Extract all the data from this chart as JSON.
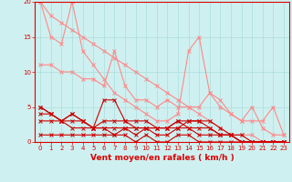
{
  "background_color": "#cff0f0",
  "grid_color": "#aadddd",
  "xlabel": "Vent moyen/en rafales ( km/h )",
  "xlabel_color": "#dd0000",
  "ylabel_ticks": [
    0,
    5,
    10,
    15,
    20
  ],
  "xticks": [
    0,
    1,
    2,
    3,
    4,
    5,
    6,
    7,
    8,
    9,
    10,
    11,
    12,
    13,
    14,
    15,
    16,
    17,
    18,
    19,
    20,
    21,
    22,
    23
  ],
  "xlim": [
    -0.5,
    23.5
  ],
  "ylim": [
    0,
    20
  ],
  "series": [
    {
      "x": [
        0,
        1,
        2,
        3,
        4,
        5,
        6,
        7,
        8,
        9,
        10,
        11,
        12,
        13,
        14,
        15,
        16,
        17,
        18,
        19,
        20,
        21,
        22,
        23
      ],
      "y": [
        20,
        18,
        17,
        16,
        15,
        14,
        13,
        12,
        11,
        10,
        9,
        8,
        7,
        6,
        5,
        4,
        3,
        2,
        1,
        1,
        1,
        0,
        0,
        0
      ],
      "color": "#ff8888",
      "lw": 0.8,
      "marker": "x",
      "ms": 2.5
    },
    {
      "x": [
        0,
        1,
        2,
        3,
        4,
        5,
        6,
        7,
        8,
        9,
        10,
        11,
        12,
        13,
        14,
        15,
        16,
        17,
        18,
        19,
        20,
        21,
        22,
        23
      ],
      "y": [
        20,
        15,
        14,
        20,
        13,
        11,
        9,
        7,
        6,
        5,
        4,
        3,
        3,
        4,
        13,
        15,
        7,
        5,
        4,
        3,
        5,
        2,
        1,
        1
      ],
      "color": "#ff8888",
      "lw": 0.8,
      "marker": "x",
      "ms": 2.5
    },
    {
      "x": [
        0,
        1,
        2,
        3,
        4,
        5,
        6,
        7,
        8,
        9,
        10,
        11,
        12,
        13,
        14,
        15,
        16,
        17,
        18,
        19,
        20,
        21,
        22,
        23
      ],
      "y": [
        11,
        11,
        10,
        10,
        9,
        9,
        8,
        13,
        8,
        6,
        6,
        5,
        6,
        5,
        5,
        5,
        7,
        6,
        4,
        3,
        3,
        3,
        5,
        1
      ],
      "color": "#ff8888",
      "lw": 0.8,
      "marker": "x",
      "ms": 2.5
    },
    {
      "x": [
        0,
        1,
        2,
        3,
        4,
        5,
        6,
        7,
        8,
        9,
        10,
        11,
        12,
        13,
        14,
        15,
        16,
        17,
        18,
        19,
        20,
        21,
        22,
        23
      ],
      "y": [
        5,
        4,
        3,
        4,
        3,
        2,
        6,
        6,
        3,
        3,
        3,
        2,
        2,
        3,
        3,
        3,
        3,
        2,
        1,
        1,
        0,
        0,
        0,
        0
      ],
      "color": "#cc0000",
      "lw": 0.8,
      "marker": "x",
      "ms": 2.5
    },
    {
      "x": [
        0,
        1,
        2,
        3,
        4,
        5,
        6,
        7,
        8,
        9,
        10,
        11,
        12,
        13,
        14,
        15,
        16,
        17,
        18,
        19,
        20,
        21,
        22,
        23
      ],
      "y": [
        5,
        4,
        3,
        4,
        3,
        2,
        3,
        3,
        3,
        2,
        2,
        2,
        2,
        3,
        2,
        2,
        2,
        1,
        1,
        0,
        0,
        0,
        0,
        0
      ],
      "color": "#cc0000",
      "lw": 0.8,
      "marker": "x",
      "ms": 2.5
    },
    {
      "x": [
        0,
        1,
        2,
        3,
        4,
        5,
        6,
        7,
        8,
        9,
        10,
        11,
        12,
        13,
        14,
        15,
        16,
        17,
        18,
        19,
        20,
        21,
        22,
        23
      ],
      "y": [
        4,
        4,
        3,
        3,
        3,
        2,
        2,
        2,
        2,
        2,
        2,
        2,
        2,
        2,
        3,
        3,
        2,
        1,
        1,
        0,
        0,
        0,
        0,
        0
      ],
      "color": "#cc0000",
      "lw": 0.8,
      "marker": "x",
      "ms": 2.5
    },
    {
      "x": [
        0,
        1,
        2,
        3,
        4,
        5,
        6,
        7,
        8,
        9,
        10,
        11,
        12,
        13,
        14,
        15,
        16,
        17,
        18,
        19,
        20,
        21,
        22,
        23
      ],
      "y": [
        3,
        3,
        3,
        2,
        2,
        2,
        2,
        1,
        2,
        1,
        2,
        1,
        1,
        2,
        2,
        1,
        1,
        1,
        1,
        0,
        0,
        0,
        0,
        0
      ],
      "color": "#cc0000",
      "lw": 0.8,
      "marker": "x",
      "ms": 2.5
    },
    {
      "x": [
        0,
        1,
        2,
        3,
        4,
        5,
        6,
        7,
        8,
        9,
        10,
        11,
        12,
        13,
        14,
        15,
        16,
        17,
        18,
        19,
        20,
        21,
        22,
        23
      ],
      "y": [
        1,
        1,
        1,
        1,
        1,
        1,
        1,
        1,
        1,
        0,
        1,
        0,
        0,
        1,
        1,
        0,
        0,
        0,
        0,
        0,
        0,
        0,
        0,
        0
      ],
      "color": "#cc0000",
      "lw": 0.8,
      "marker": "x",
      "ms": 2.5
    }
  ],
  "tick_label_color": "#dd0000",
  "tick_label_size": 5,
  "xlabel_size": 6.5,
  "spine_color": "#dd0000"
}
